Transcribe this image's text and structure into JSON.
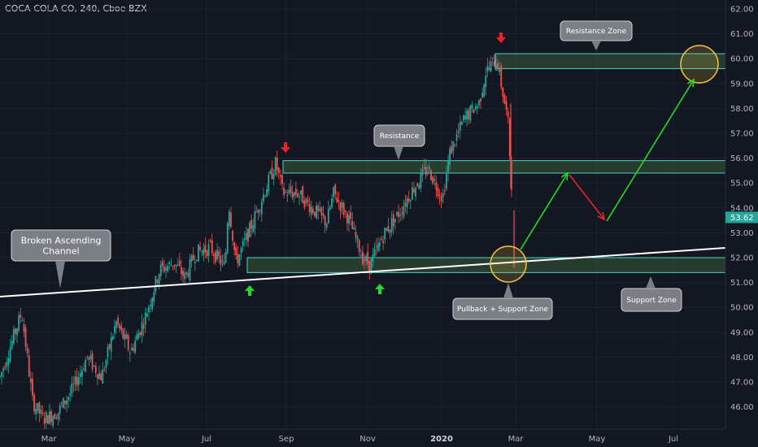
{
  "header": {
    "title": "COCA-COLA CO, 240, Cboe BZX"
  },
  "colors": {
    "background": "#131722",
    "up": "#26a69a",
    "down": "#ef5350",
    "zone_fill": "#3a5a3a",
    "zone_border": "#4fd1c5",
    "trendline": "#ffffff",
    "green_arrow": "#22dd22",
    "red_arrow": "#ee2222",
    "circle": "#f0c040",
    "callout_bg": "#7a7e85",
    "price_badge": "#26a69a"
  },
  "chart_data": {
    "type": "candlestick",
    "y_axis_ticks": [
      "62.00",
      "61.00",
      "60.00",
      "59.00",
      "58.00",
      "57.00",
      "56.00",
      "55.00",
      "54.00",
      "53.00",
      "52.00",
      "51.00",
      "50.00",
      "49.00",
      "48.00",
      "47.00",
      "46.00"
    ],
    "ylim": [
      45.6,
      62.2
    ],
    "last_price": "53.62",
    "x_axis_ticks": [
      "Mar",
      "May",
      "Jul",
      "Sep",
      "Nov",
      "2020",
      "Mar",
      "May",
      "Jul"
    ],
    "x_axis_bold": "2020",
    "price_path": [
      [
        0,
        47.2
      ],
      [
        0.03,
        49.8
      ],
      [
        0.045,
        46.2
      ],
      [
        0.06,
        45.5
      ],
      [
        0.08,
        45.8
      ],
      [
        0.1,
        46.7
      ],
      [
        0.12,
        48.0
      ],
      [
        0.14,
        47.2
      ],
      [
        0.16,
        49.4
      ],
      [
        0.18,
        48.2
      ],
      [
        0.2,
        49.6
      ],
      [
        0.22,
        51.5
      ],
      [
        0.24,
        51.8
      ],
      [
        0.255,
        51.2
      ],
      [
        0.27,
        52.2
      ],
      [
        0.29,
        52.4
      ],
      [
        0.31,
        51.6
      ],
      [
        0.315,
        54.3
      ],
      [
        0.325,
        51.8
      ],
      [
        0.34,
        52.8
      ],
      [
        0.36,
        54.3
      ],
      [
        0.38,
        55.8
      ],
      [
        0.39,
        54.6
      ],
      [
        0.41,
        54.6
      ],
      [
        0.43,
        54.0
      ],
      [
        0.45,
        53.4
      ],
      [
        0.46,
        54.6
      ],
      [
        0.48,
        53.6
      ],
      [
        0.5,
        52.0
      ],
      [
        0.51,
        51.7
      ],
      [
        0.53,
        53.0
      ],
      [
        0.55,
        53.8
      ],
      [
        0.57,
        54.8
      ],
      [
        0.59,
        55.6
      ],
      [
        0.61,
        54.4
      ],
      [
        0.62,
        56.2
      ],
      [
        0.64,
        57.6
      ],
      [
        0.66,
        58.2
      ],
      [
        0.67,
        59.5
      ],
      [
        0.685,
        60.0
      ],
      [
        0.69,
        59.1
      ],
      [
        0.7,
        57.5
      ],
      [
        0.705,
        55.0
      ],
      [
        0.72,
        53.6
      ]
    ],
    "zones": [
      {
        "name": "Resistance Zone",
        "ymin": 59.6,
        "ymax": 60.2
      },
      {
        "name": "Resistance",
        "ymin": 55.4,
        "ymax": 55.9
      },
      {
        "name": "Support Zone",
        "ymin": 51.4,
        "ymax": 52.0
      }
    ],
    "trendline": {
      "from": [
        0,
        50.6
      ],
      "to": [
        1,
        52.4
      ]
    },
    "annotations": {
      "resistance_zone": "Resistance Zone",
      "resistance": "Resistance",
      "channel": "Broken Ascending Channel",
      "pullback": "Pullback + Support Zone",
      "support_zone": "Support Zone"
    }
  }
}
